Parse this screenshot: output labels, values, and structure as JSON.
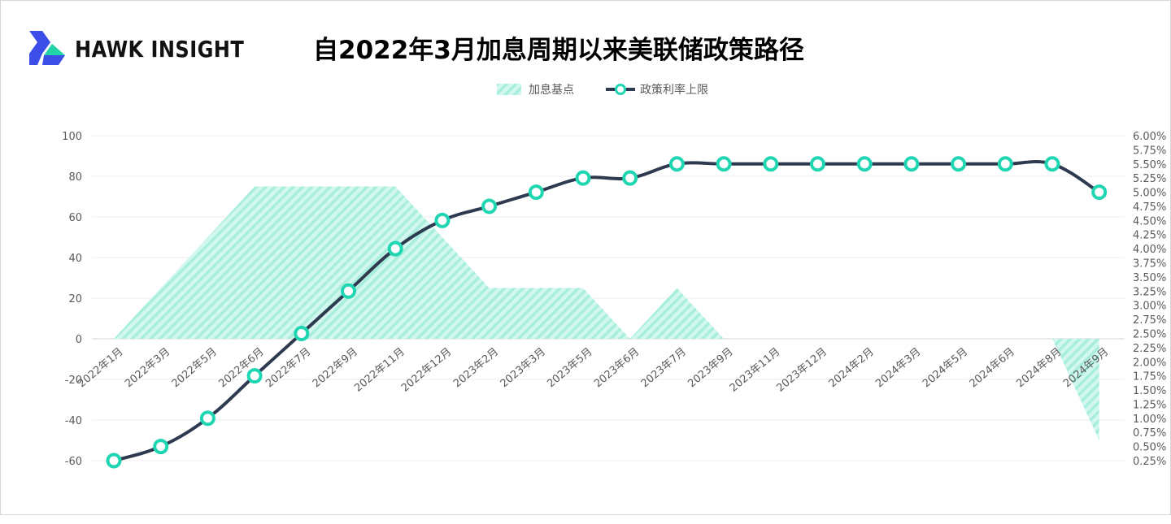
{
  "brand": {
    "name": "HAWK INSIGHT",
    "logo_icon": "hawk-logo-icon",
    "colors": {
      "primary": "#3d4de8",
      "accent": "#20d3a8"
    }
  },
  "chart_data": {
    "type": "line",
    "title": "自2022年3月加息周期以来美联储政策路径",
    "categories": [
      "2022年1月",
      "2022年3月",
      "2022年5月",
      "2022年6月",
      "2022年7月",
      "2022年9月",
      "2022年11月",
      "2022年12月",
      "2023年2月",
      "2023年3月",
      "2023年5月",
      "2023年6月",
      "2023年7月",
      "2023年9月",
      "2023年11月",
      "2023年12月",
      "2024年2月",
      "2024年3月",
      "2024年5月",
      "2024年6月",
      "2024年8月",
      "2024年9月"
    ],
    "series": [
      {
        "name": "加息基点",
        "type": "area",
        "axis": "left",
        "color": "#20d3a8",
        "pattern": "diagonal-stripes",
        "values": [
          0,
          25,
          50,
          75,
          75,
          75,
          75,
          50,
          25,
          25,
          25,
          0,
          25,
          0,
          0,
          0,
          0,
          0,
          0,
          0,
          0,
          -50
        ]
      },
      {
        "name": "政策利率上限",
        "type": "line",
        "axis": "right",
        "color": "#2e3a50",
        "marker_color": "#1fd6b2",
        "values": [
          0.25,
          0.5,
          1.0,
          1.75,
          2.5,
          3.25,
          4.0,
          4.5,
          4.75,
          5.0,
          5.25,
          5.25,
          5.5,
          5.5,
          5.5,
          5.5,
          5.5,
          5.5,
          5.5,
          5.5,
          5.5,
          5.0
        ]
      }
    ],
    "y_left": {
      "ylim": [
        -60,
        100
      ],
      "ticks": [
        100,
        80,
        60,
        40,
        20,
        0,
        -20,
        -40,
        -60
      ],
      "tick_labels": [
        "100",
        "80",
        "60",
        "40",
        "20",
        "0",
        "-20",
        "-40",
        "-60"
      ]
    },
    "y_right": {
      "ylim": [
        0.25,
        6.0
      ],
      "tick_labels": [
        "6.00%",
        "5.75%",
        "5.50%",
        "5.25%",
        "5.00%",
        "4.75%",
        "4.50%",
        "4.25%",
        "4.00%",
        "3.75%",
        "3.50%",
        "3.25%",
        "3.00%",
        "2.75%",
        "2.50%",
        "2.25%",
        "2.00%",
        "1.75%",
        "1.50%",
        "1.25%",
        "1.00%",
        "0.75%",
        "0.50%",
        "0.25%"
      ]
    },
    "grid": true,
    "legend_position": "top-center"
  }
}
